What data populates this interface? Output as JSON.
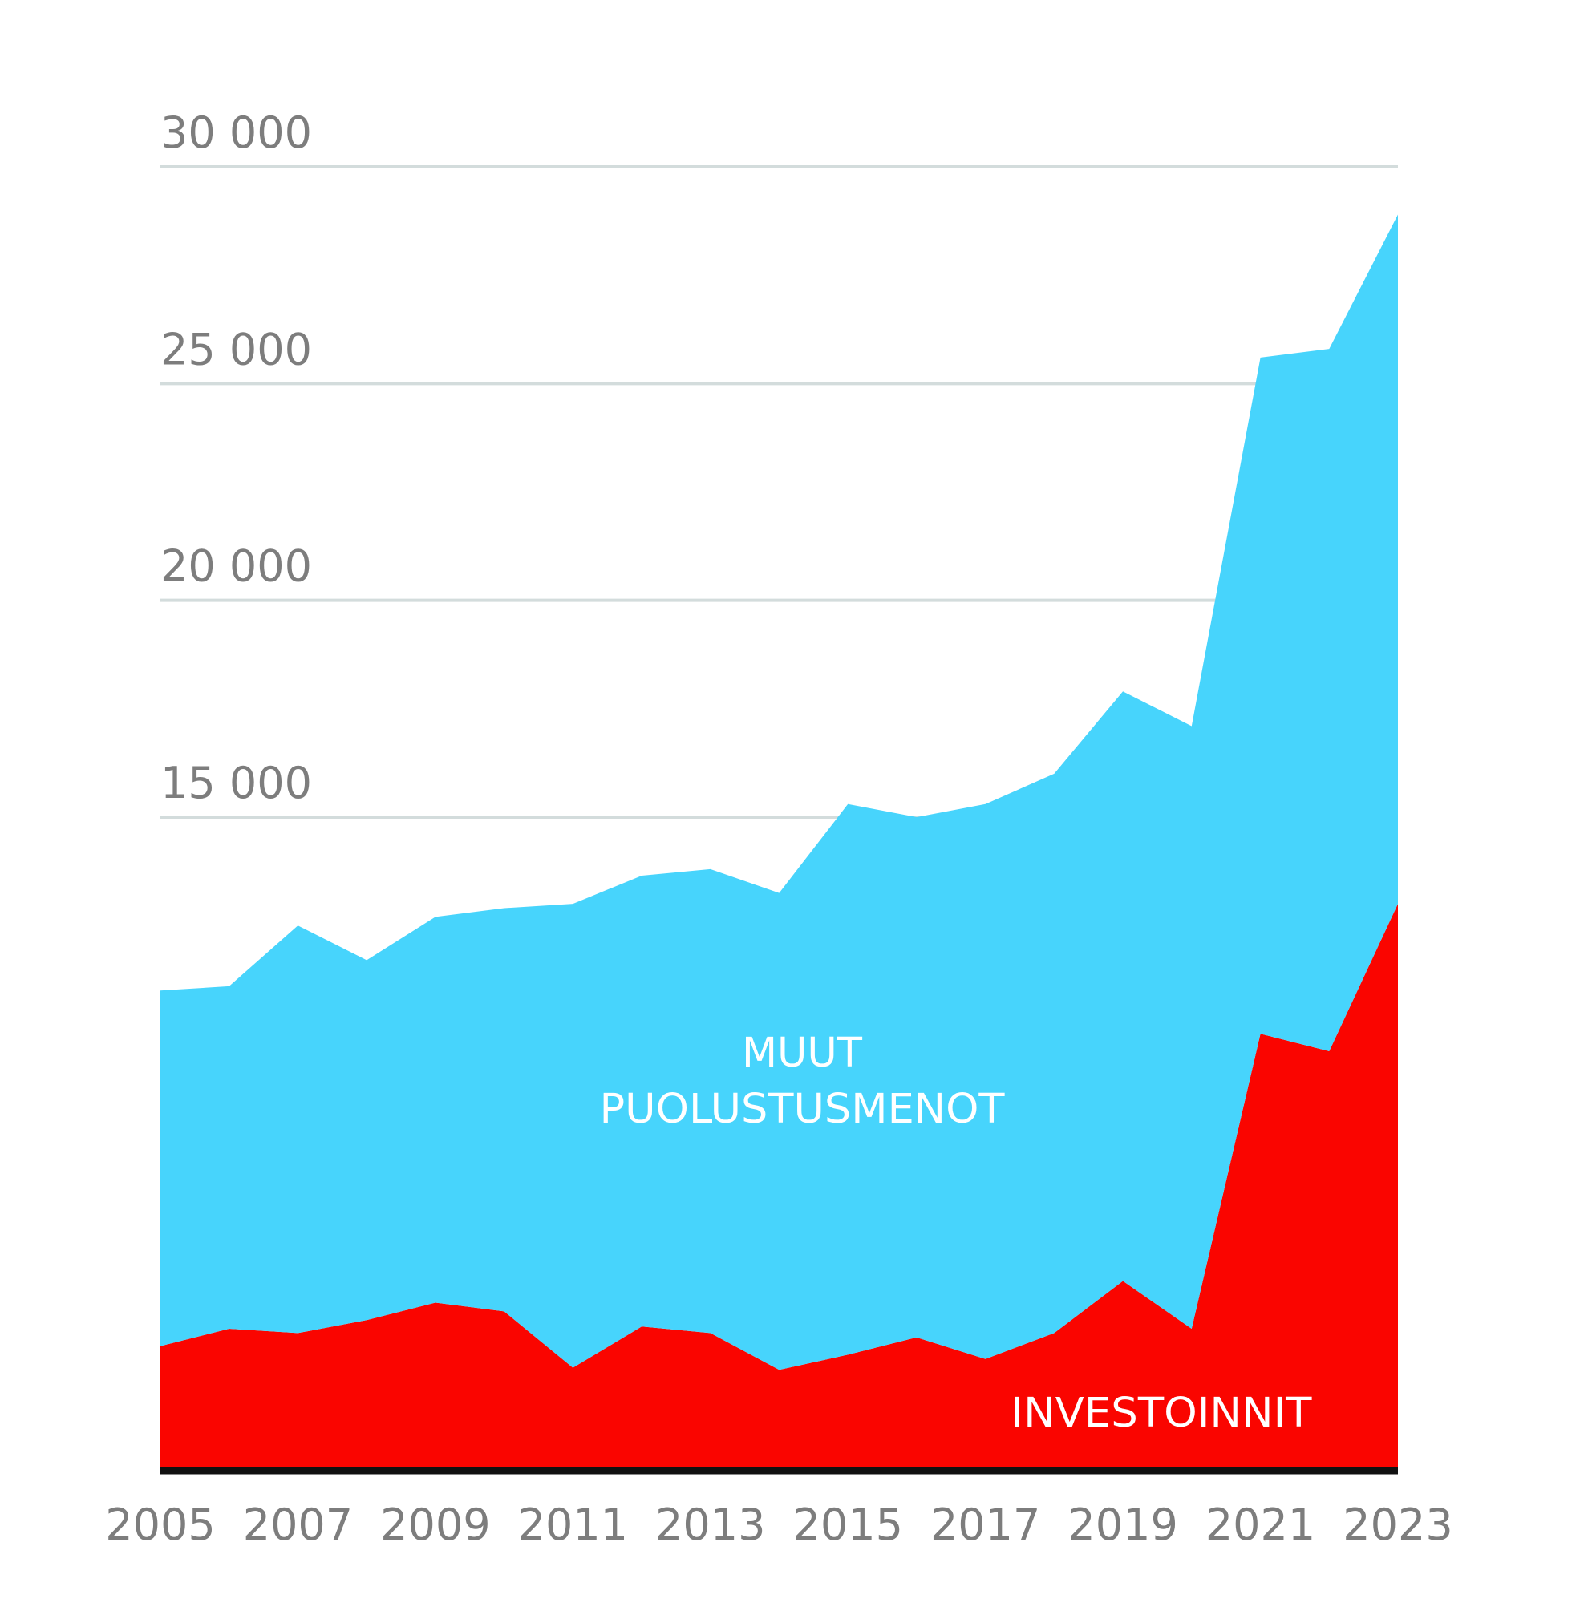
{
  "chart_data": {
    "type": "area",
    "stacked": true,
    "title": "",
    "xlabel": "",
    "ylabel": "",
    "x": [
      2005,
      2006,
      2007,
      2008,
      2009,
      2010,
      2011,
      2012,
      2013,
      2014,
      2015,
      2016,
      2017,
      2018,
      2019,
      2020,
      2021,
      2022,
      2023
    ],
    "ylim": [
      0,
      30000
    ],
    "yticks": [
      15000,
      20000,
      25000,
      30000
    ],
    "ytick_labels": [
      "15 000",
      "20 000",
      "25 000",
      "30 000"
    ],
    "xticks": [
      2005,
      2007,
      2009,
      2011,
      2013,
      2015,
      2017,
      2019,
      2021,
      2023
    ],
    "xtick_labels": [
      "2005",
      "2007",
      "2009",
      "2011",
      "2013",
      "2015",
      "2017",
      "2019",
      "2021",
      "2023"
    ],
    "grid": true,
    "legend": "none",
    "series_labels": [
      "MUUT PUOLUSTUSMENOT",
      "INVESTOINNIT"
    ],
    "series": [
      {
        "name": "INVESTOINNIT",
        "color": "#fa0500",
        "values": [
          2800,
          3200,
          3100,
          3400,
          3800,
          3600,
          2300,
          3250,
          3100,
          2250,
          2600,
          3000,
          2500,
          3100,
          4300,
          3200,
          10000,
          9600,
          13000
        ]
      },
      {
        "name": "MUUT PUOLUSTUSMENOT",
        "color": "#47d4fc",
        "values": [
          8200,
          7900,
          9400,
          8300,
          8900,
          9300,
          10700,
          10400,
          10700,
          11000,
          12700,
          12000,
          12800,
          12900,
          13600,
          13900,
          15600,
          16200,
          15900
        ]
      }
    ],
    "baseline_color": "#111111",
    "grid_color": "#d3dcdc",
    "tick_color": "#7d7d7d"
  }
}
